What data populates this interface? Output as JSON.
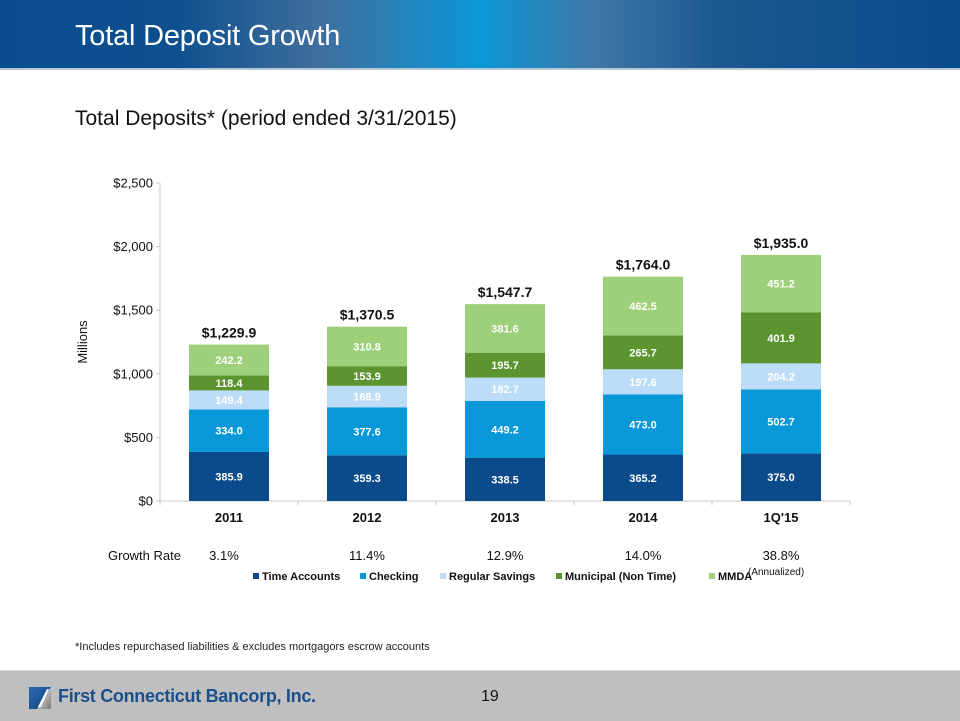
{
  "header": {
    "title": "Total Deposit Growth"
  },
  "subtitle": "Total Deposits* (period ended 3/31/2015)",
  "footnote": "*Includes repurchased liabilities & excludes mortgagors escrow accounts",
  "footer": {
    "company": "First Connecticut Bancorp, Inc.",
    "page_number": "19",
    "logo_icon": "bank-logo-icon"
  },
  "growth": {
    "label": "Growth Rate",
    "values": [
      "3.1%",
      "11.4%",
      "12.9%",
      "14.0%",
      "38.8%"
    ],
    "note": "(Annualized)"
  },
  "chart_data": {
    "type": "bar",
    "stacked": true,
    "title": "",
    "xlabel": "",
    "ylabel": "Millions",
    "ylim": [
      0,
      2500
    ],
    "yticks": [
      0,
      500,
      1000,
      1500,
      2000,
      2500
    ],
    "ytick_labels": [
      "$0",
      "$500",
      "$1,000",
      "$1,500",
      "$2,000",
      "$2,500"
    ],
    "grid": false,
    "legend_position": "bottom",
    "categories": [
      "2011",
      "2012",
      "2013",
      "2014",
      "1Q'15"
    ],
    "series": [
      {
        "name": "Time Accounts",
        "color": "#0b4a8b",
        "label_color": "#ffffff",
        "values": [
          385.9,
          359.3,
          338.5,
          365.2,
          375.0
        ],
        "labels": [
          "385.9",
          "359.3",
          "338.5",
          "365.2",
          "375.0"
        ]
      },
      {
        "name": "Checking",
        "color": "#0897d7",
        "label_color": "#ffffff",
        "values": [
          334.0,
          377.6,
          449.2,
          473.0,
          502.7
        ],
        "labels": [
          "334.0",
          "377.6",
          "449.2",
          "473.0",
          "502.7"
        ]
      },
      {
        "name": "Regular Savings",
        "color": "#bcdcf7",
        "label_color": "#ffffff",
        "values": [
          149.4,
          168.9,
          182.7,
          197.6,
          204.2
        ],
        "labels": [
          "149.4",
          "168.9",
          "182.7",
          "197.6",
          "204.2"
        ]
      },
      {
        "name": "Municipal (Non Time)",
        "color": "#5c9430",
        "label_color": "#ffffff",
        "values": [
          118.4,
          153.9,
          195.7,
          265.7,
          401.9
        ],
        "labels": [
          "118.4",
          "153.9",
          "195.7",
          "265.7",
          "401.9"
        ]
      },
      {
        "name": "MMDA",
        "color": "#9ed07b",
        "label_color": "#ffffff",
        "values": [
          242.2,
          310.8,
          381.6,
          462.5,
          451.2
        ],
        "labels": [
          "242.2",
          "310.8",
          "381.6",
          "462.5",
          "451.2"
        ]
      }
    ],
    "totals": [
      1229.9,
      1370.5,
      1547.7,
      1764.0,
      1935.0
    ],
    "total_labels": [
      "$1,229.9",
      "$1,370.5",
      "$1,547.7",
      "$1,764.0",
      "$1,935.0"
    ]
  }
}
